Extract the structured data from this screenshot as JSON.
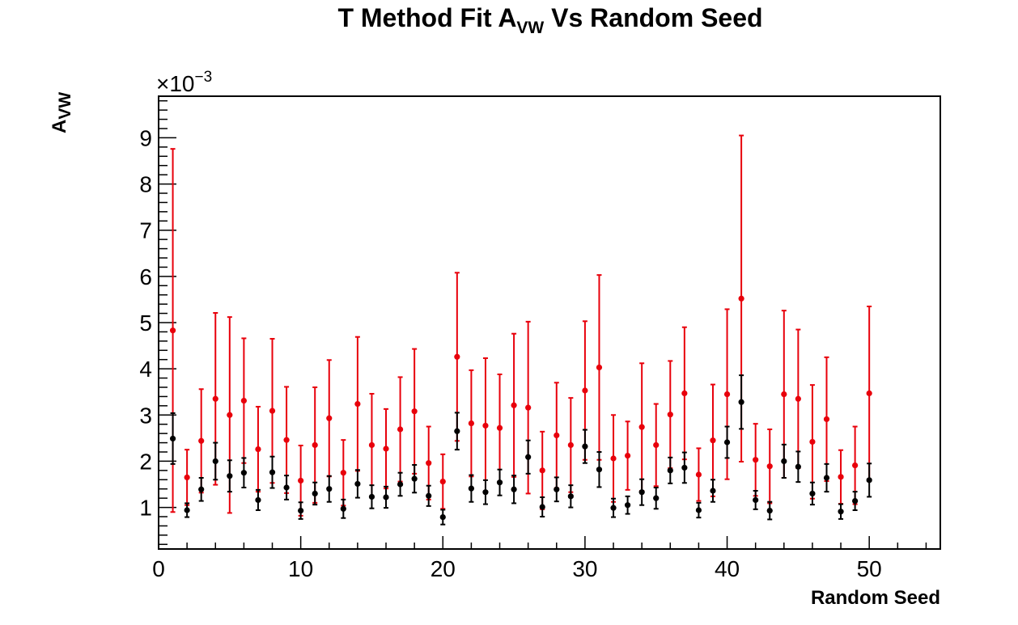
{
  "chart_data": {
    "type": "scatter",
    "title": {
      "prefix": "T Method Fit A",
      "subscript": "VW",
      "suffix": " Vs Random Seed"
    },
    "xlabel": "Random Seed",
    "ylabel": {
      "base": "A",
      "subscript": "VW"
    },
    "y_exponent": {
      "prefix": "×10",
      "superscript": "−3"
    },
    "xlim": [
      0,
      55
    ],
    "ylim": [
      0.0001,
      0.0099
    ],
    "x_ticks": [
      0,
      10,
      20,
      30,
      40,
      50
    ],
    "x_tick_labels": [
      "0",
      "10",
      "20",
      "30",
      "40",
      "50"
    ],
    "y_ticks": [
      0.001,
      0.002,
      0.003,
      0.004,
      0.005,
      0.006,
      0.007,
      0.008,
      0.009
    ],
    "y_tick_labels": [
      "1",
      "2",
      "3",
      "4",
      "5",
      "6",
      "7",
      "8",
      "9"
    ],
    "grid": false,
    "x": [
      1,
      2,
      3,
      4,
      5,
      6,
      7,
      8,
      9,
      10,
      11,
      12,
      13,
      14,
      15,
      16,
      17,
      18,
      19,
      20,
      21,
      22,
      23,
      24,
      25,
      26,
      27,
      28,
      29,
      30,
      31,
      32,
      33,
      34,
      35,
      36,
      37,
      38,
      39,
      40,
      41,
      42,
      43,
      44,
      45,
      46,
      47,
      48,
      49,
      50
    ],
    "series": [
      {
        "color": "#e8000b",
        "values": [
          0.00483,
          0.00165,
          0.00244,
          0.00335,
          0.003,
          0.00331,
          0.00226,
          0.00309,
          0.00246,
          0.00158,
          0.00235,
          0.00293,
          0.00175,
          0.00324,
          0.00235,
          0.00227,
          0.00269,
          0.00308,
          0.00196,
          0.00156,
          0.00426,
          0.00282,
          0.00277,
          0.00272,
          0.00321,
          0.00316,
          0.0018,
          0.00256,
          0.00235,
          0.00353,
          0.00403,
          0.00206,
          0.00212,
          0.00274,
          0.00235,
          0.00301,
          0.00347,
          0.00171,
          0.00245,
          0.00345,
          0.00552,
          0.00203,
          0.00189,
          0.00345,
          0.00335,
          0.00242,
          0.00291,
          0.00166,
          0.00191,
          0.00347
        ],
        "errors": [
          0.00393,
          0.0006,
          0.00112,
          0.00186,
          0.00212,
          0.00135,
          0.00092,
          0.00156,
          0.00115,
          0.00076,
          0.00125,
          0.00126,
          0.00071,
          0.00145,
          0.00111,
          0.00086,
          0.00113,
          0.00135,
          0.00079,
          0.00059,
          0.00182,
          0.00115,
          0.00146,
          0.00116,
          0.00155,
          0.00186,
          0.00084,
          0.00114,
          0.00102,
          0.0015,
          0.002,
          0.00094,
          0.00074,
          0.00138,
          0.00089,
          0.00116,
          0.00143,
          0.00057,
          0.00121,
          0.00184,
          0.00353,
          0.00078,
          0.0008,
          0.00181,
          0.0015,
          0.00123,
          0.00134,
          0.00058,
          0.00084,
          0.00188
        ]
      },
      {
        "color": "#000000",
        "values": [
          0.00249,
          0.00094,
          0.00139,
          0.002,
          0.00168,
          0.00175,
          0.00116,
          0.00176,
          0.00143,
          0.00093,
          0.0013,
          0.0014,
          0.00097,
          0.00151,
          0.00123,
          0.00122,
          0.0015,
          0.00162,
          0.00125,
          0.00079,
          0.00265,
          0.00141,
          0.00133,
          0.00154,
          0.00139,
          0.00209,
          0.00101,
          0.00139,
          0.00124,
          0.00232,
          0.00182,
          0.00099,
          0.00105,
          0.00133,
          0.0012,
          0.0018,
          0.00186,
          0.00094,
          0.00136,
          0.00241,
          0.00328,
          0.00116,
          0.00093,
          0.002,
          0.00188,
          0.0013,
          0.00164,
          0.00091,
          0.00114,
          0.00159
        ],
        "errors": [
          0.00055,
          0.00015,
          0.00025,
          0.0004,
          0.00034,
          0.00032,
          0.00022,
          0.00034,
          0.00026,
          0.00018,
          0.00024,
          0.00028,
          0.0002,
          0.0003,
          0.00025,
          0.00023,
          0.00025,
          0.0003,
          0.00022,
          0.00016,
          0.0004,
          0.00029,
          0.00026,
          0.00028,
          0.0003,
          0.00036,
          0.00021,
          0.00026,
          0.00024,
          0.00036,
          0.00038,
          0.0002,
          0.00019,
          0.00028,
          0.00023,
          0.00028,
          0.00033,
          0.00016,
          0.00024,
          0.00034,
          0.00058,
          0.0002,
          0.00019,
          0.00036,
          0.00033,
          0.00024,
          0.0003,
          0.00016,
          0.0002,
          0.00036
        ]
      }
    ]
  }
}
